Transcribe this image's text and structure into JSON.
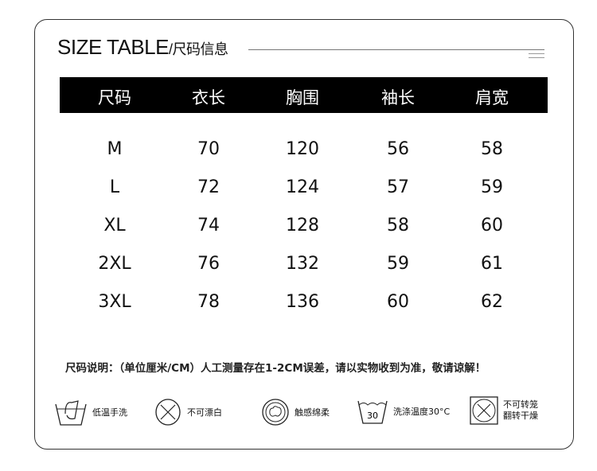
{
  "title": {
    "main": "SIZE TABLE",
    "sub": "/尺码信息"
  },
  "table": {
    "headers": [
      "尺码",
      "衣长",
      "胸围",
      "袖长",
      "肩宽"
    ],
    "rows": [
      [
        "M",
        "70",
        "120",
        "56",
        "58"
      ],
      [
        "L",
        "72",
        "124",
        "57",
        "59"
      ],
      [
        "XL",
        "74",
        "128",
        "58",
        "60"
      ],
      [
        "2XL",
        "76",
        "132",
        "59",
        "61"
      ],
      [
        "3XL",
        "78",
        "136",
        "60",
        "62"
      ]
    ]
  },
  "note": "尺码说明：（单位厘米/CM）人工测量存在1-2CM误差，请以实物收到为准，敬请谅解！",
  "care": [
    {
      "icon": "hand-wash-icon",
      "label": "低温手洗"
    },
    {
      "icon": "no-bleach-icon",
      "label": "不可漂白"
    },
    {
      "icon": "cotton-icon",
      "label": "触感绵柔"
    },
    {
      "icon": "wash-30-icon",
      "label": "洗涤温度30°C",
      "num": "30"
    },
    {
      "icon": "no-tumble-dry-icon",
      "label": "不可转笼",
      "label2": "翻转干燥"
    }
  ]
}
